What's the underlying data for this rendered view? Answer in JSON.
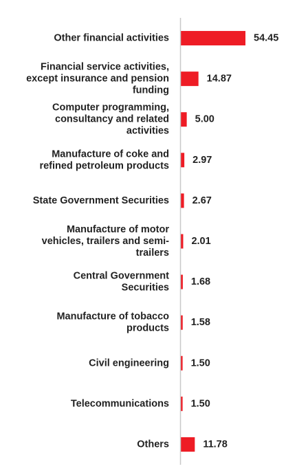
{
  "chart_data": {
    "type": "bar",
    "orientation": "horizontal",
    "title": "",
    "xlabel": "",
    "ylabel": "",
    "xlim": [
      0,
      60
    ],
    "grid": false,
    "legend": "none",
    "bar_color": "#ee1c25",
    "axis_color": "#c8c8c8",
    "categories": [
      "Other financial activities",
      "Financial service activities, except insurance and pension funding",
      "Computer programming, consultancy and related activities",
      "Manufacture of coke and refined petroleum products",
      "State Government Securities",
      "Manufacture of motor vehicles, trailers and semi-trailers",
      "Central Government Securities",
      "Manufacture of tobacco products",
      "Civil engineering",
      "Telecommunications",
      "Others"
    ],
    "category_lines": [
      [
        "Other financial activities"
      ],
      [
        "Financial service activities,",
        "except insurance and pension",
        "funding"
      ],
      [
        "Computer programming,",
        "consultancy and related",
        "activities"
      ],
      [
        "Manufacture of coke and",
        "refined petroleum products"
      ],
      [
        "State Government Securities"
      ],
      [
        "Manufacture of motor",
        "vehicles, trailers and semi-",
        "trailers"
      ],
      [
        "Central Government",
        "Securities"
      ],
      [
        "Manufacture of tobacco",
        "products"
      ],
      [
        "Civil engineering"
      ],
      [
        "Telecommunications"
      ],
      [
        "Others"
      ]
    ],
    "values": [
      54.45,
      14.87,
      5.0,
      2.97,
      2.67,
      2.01,
      1.68,
      1.58,
      1.5,
      1.5,
      11.78
    ],
    "value_labels": [
      "54.45",
      "14.87",
      "5.00",
      "2.97",
      "2.67",
      "2.01",
      "1.68",
      "1.58",
      "1.50",
      "1.50",
      "11.78"
    ]
  }
}
